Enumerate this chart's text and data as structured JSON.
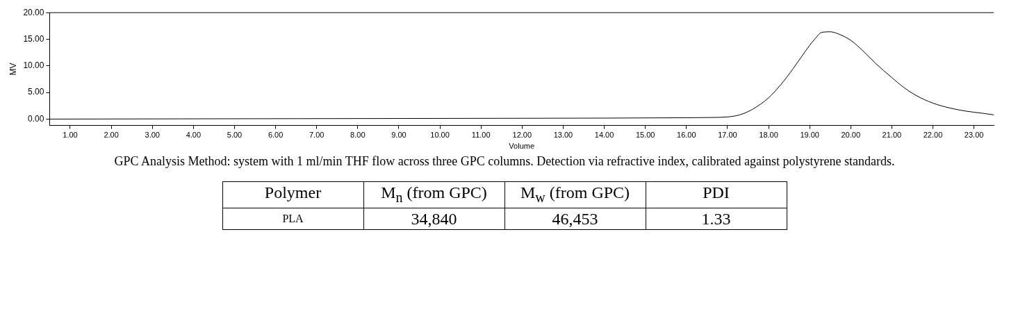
{
  "chart_data": [
    {
      "type": "line",
      "xlabel": "Volume",
      "ylabel": "MV",
      "x": [
        0.5,
        4,
        8,
        12,
        16,
        16.6,
        17,
        17.3,
        17.6,
        18,
        18.3,
        18.6,
        18.9,
        19.1,
        19.3,
        19.5,
        19.7,
        20,
        20.3,
        20.6,
        21,
        21.3,
        21.6,
        22,
        22.4,
        22.8,
        23.2,
        23.48
      ],
      "series": [
        {
          "color": "#000000",
          "values": [
            0.0,
            0.05,
            0.1,
            0.15,
            0.25,
            0.3,
            0.4,
            0.8,
            1.8,
            4.0,
            6.5,
            9.5,
            12.8,
            14.8,
            16.3,
            16.4,
            16.0,
            14.8,
            12.8,
            10.5,
            7.8,
            5.9,
            4.4,
            3.0,
            2.1,
            1.5,
            1.1,
            0.8
          ]
        }
      ],
      "xlim": [
        0.5,
        23.48
      ],
      "ylim": [
        -1.2,
        20
      ],
      "xticks": [
        {
          "value": 1,
          "label": "1.00"
        },
        {
          "value": 2,
          "label": "2.00"
        },
        {
          "value": 3,
          "label": "3.00"
        },
        {
          "value": 4,
          "label": "4.00"
        },
        {
          "value": 5,
          "label": "5.00"
        },
        {
          "value": 6,
          "label": "6.00"
        },
        {
          "value": 7,
          "label": "7.00"
        },
        {
          "value": 8,
          "label": "8.00"
        },
        {
          "value": 9,
          "label": "9.00"
        },
        {
          "value": 10,
          "label": "10.00"
        },
        {
          "value": 11,
          "label": "11.00"
        },
        {
          "value": 12,
          "label": "12.00"
        },
        {
          "value": 13,
          "label": "13.00"
        },
        {
          "value": 14,
          "label": "14.00"
        },
        {
          "value": 15,
          "label": "15.00"
        },
        {
          "value": 16,
          "label": "16.00"
        },
        {
          "value": 17,
          "label": "17.00"
        },
        {
          "value": 18,
          "label": "18.00"
        },
        {
          "value": 19,
          "label": "19.00"
        },
        {
          "value": 20,
          "label": "20.00"
        },
        {
          "value": 21,
          "label": "21.00"
        },
        {
          "value": 22,
          "label": "22.00"
        },
        {
          "value": 23,
          "label": "23.00"
        }
      ],
      "yticks": [
        {
          "value": 0,
          "label": "0.00"
        },
        {
          "value": 5,
          "label": "5.00"
        },
        {
          "value": 10,
          "label": "10.00"
        },
        {
          "value": 15,
          "label": "15.00"
        },
        {
          "value": 20,
          "label": "20.00"
        }
      ],
      "grid": false,
      "legend": false,
      "marker": "none",
      "line_style": "solid",
      "annotations": [
        "GPC Analysis Method: system with 1 ml/min THF flow across three GPC columns. Detection via refractive index, calibrated against polystyrene standards."
      ]
    },
    {
      "type": "other",
      "annotations": [
        "Polymer",
        "M$_{n}$ (from GPC)",
        "M$_{w}$ (from GPC)",
        "PDI",
        "PLA",
        "34,840",
        "46,453",
        "1.33"
      ]
    }
  ]
}
